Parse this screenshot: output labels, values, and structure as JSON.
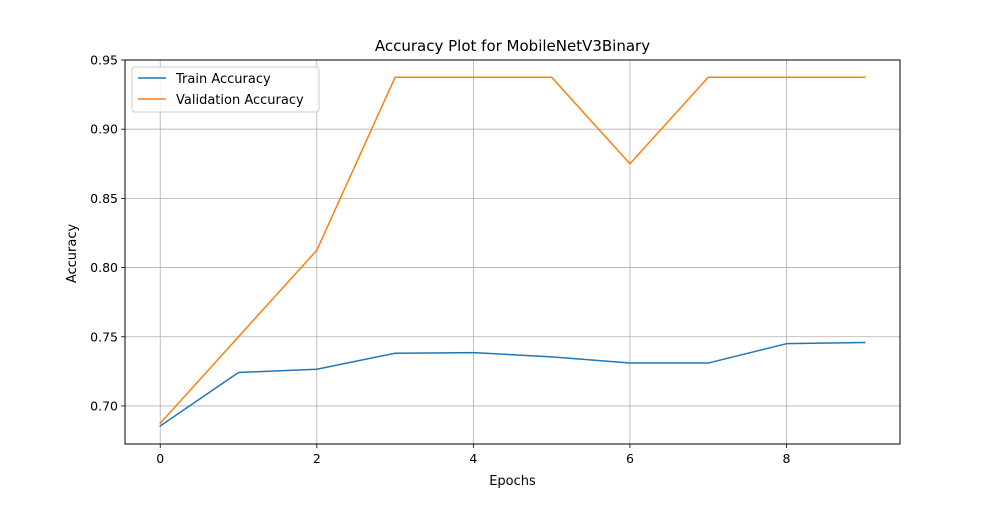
{
  "chart_data": {
    "type": "line",
    "title": "Accuracy Plot for MobileNetV3Binary",
    "xlabel": "Epochs",
    "ylabel": "Accuracy",
    "xlim": [
      -0.45,
      9.45
    ],
    "ylim": [
      0.6725,
      0.95
    ],
    "xticks": [
      0,
      2,
      4,
      6,
      8
    ],
    "xtick_labels": [
      "0",
      "2",
      "4",
      "6",
      "8"
    ],
    "yticks": [
      0.7,
      0.75,
      0.8,
      0.85,
      0.9,
      0.95
    ],
    "ytick_labels": [
      "0.70",
      "0.75",
      "0.80",
      "0.85",
      "0.90",
      "0.95"
    ],
    "grid": true,
    "legend_position": "top-left",
    "x": [
      0,
      1,
      2,
      3,
      4,
      5,
      6,
      7,
      8,
      9
    ],
    "series": [
      {
        "name": "Train Accuracy",
        "color": "#1f77b4",
        "values": [
          0.6855,
          0.7242,
          0.7265,
          0.7381,
          0.7385,
          0.7355,
          0.731,
          0.731,
          0.745,
          0.7458
        ]
      },
      {
        "name": "Validation Accuracy",
        "color": "#ff7f0e",
        "values": [
          0.6875,
          0.75,
          0.8125,
          0.9375,
          0.9375,
          0.9375,
          0.875,
          0.9375,
          0.9375,
          0.9375
        ]
      }
    ]
  }
}
